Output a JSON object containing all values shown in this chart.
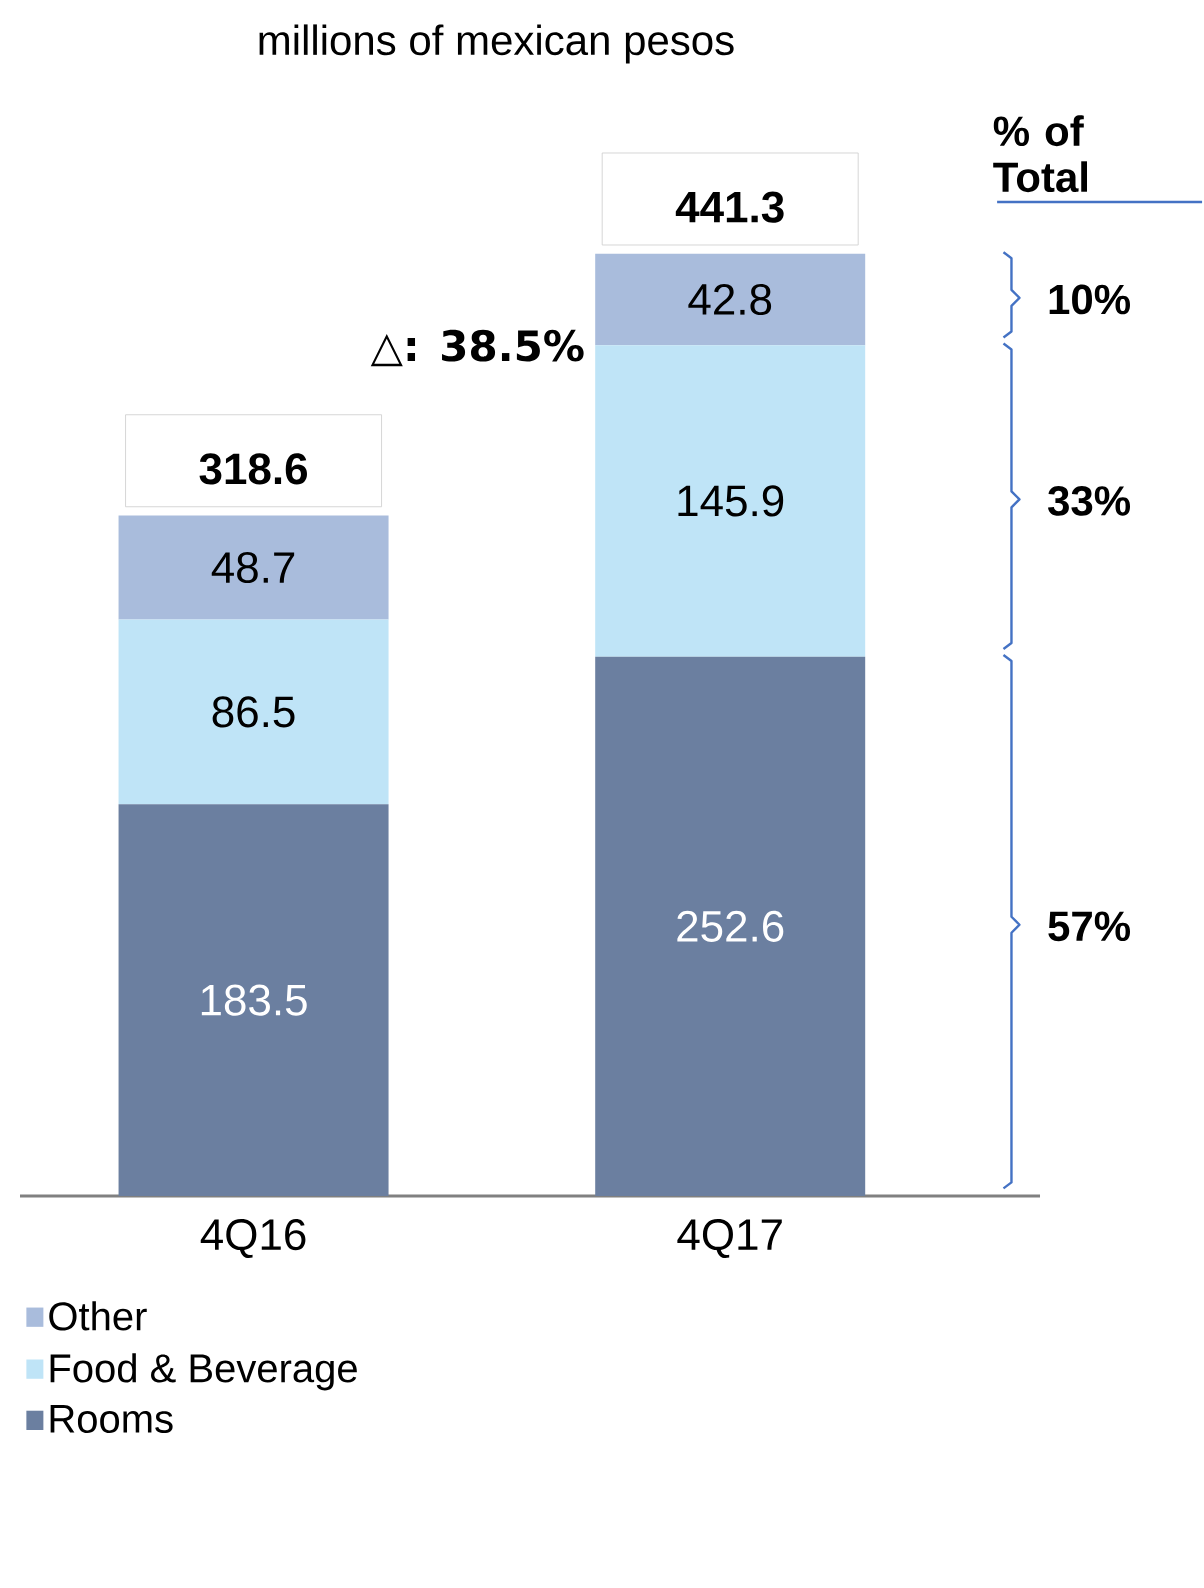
{
  "chart_data": {
    "type": "bar",
    "stacked": true,
    "title": "millions of mexican pesos",
    "categories": [
      "4Q16",
      "4Q17"
    ],
    "series": [
      {
        "name": "Rooms",
        "color": "#6b7fa0",
        "values": [
          183.5,
          252.6
        ]
      },
      {
        "name": "Food & Beverage",
        "color": "#bfe4f7",
        "values": [
          86.5,
          145.9
        ]
      },
      {
        "name": "Other",
        "color": "#a9bcdc",
        "values": [
          48.7,
          42.8
        ]
      }
    ],
    "data_labels": true,
    "totals": [
      "318.6",
      "441.3"
    ],
    "legend": "bottom left",
    "annotations": [
      "△**: 38.5%**",
      "**% of Total**",
      "10%",
      "33%",
      "57%"
    ]
  }
}
